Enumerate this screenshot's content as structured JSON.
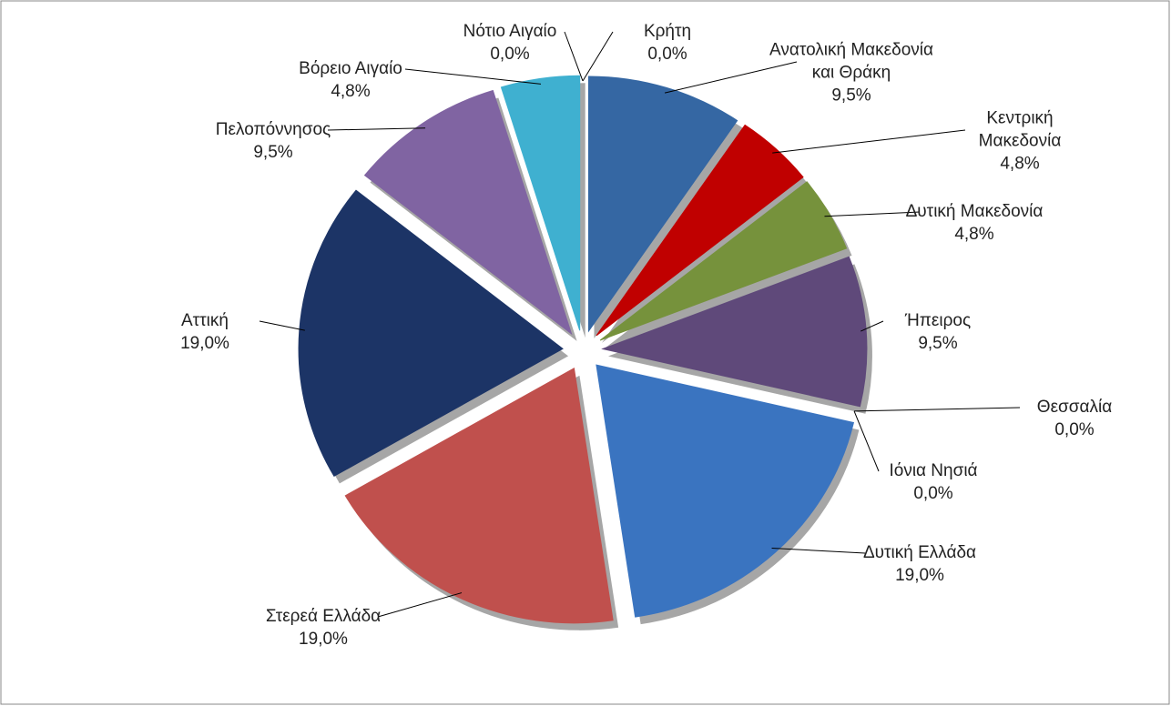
{
  "chart_data": {
    "type": "pie",
    "categories": [
      "Κρήτη",
      "Ανατολική Μακεδονία και Θράκη",
      "Κεντρική Μακεδονία",
      "Δυτική Μακεδονία",
      "Ήπειρος",
      "Θεσσαλία",
      "Ιόνια Νησιά",
      "Δυτική Ελλάδα",
      "Στερεά Ελλάδα",
      "Αττική",
      "Πελοπόννησος",
      "Βόρειο Αιγαίο",
      "Νότιο Αιγαίο"
    ],
    "values": [
      0.0,
      9.5,
      4.8,
      4.8,
      9.5,
      0.0,
      0.0,
      19.0,
      19.0,
      19.0,
      9.5,
      4.8,
      0.0
    ],
    "value_labels": [
      "0,0%",
      "9,5%",
      "4,8%",
      "4,8%",
      "9,5%",
      "0,0%",
      "0,0%",
      "19,0%",
      "19,0%",
      "19,0%",
      "9,5%",
      "4,8%",
      "0,0%"
    ],
    "colors": [
      "#4f81bd",
      "#3567a3",
      "#c00000",
      "#76923c",
      "#5f497a",
      "#984807",
      "#4f81bd",
      "#3a74c0",
      "#c0504d",
      "#1c3466",
      "#8064a2",
      "#3fb0d0",
      "#31859c"
    ]
  }
}
